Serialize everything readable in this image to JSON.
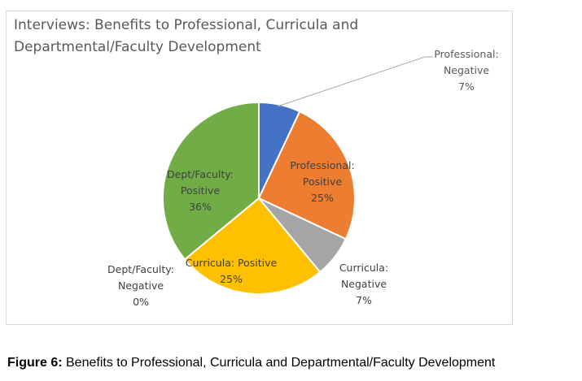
{
  "chart_data": {
    "type": "pie",
    "title": "Interviews: Benefits to Professional, Curricula and Departmental/Faculty Development",
    "slices": [
      {
        "label": "Professional: Negative",
        "value": 7,
        "display": "7%",
        "color": "#4472C4"
      },
      {
        "label": "Professional: Positive",
        "value": 25,
        "display": "25%",
        "color": "#ED7D31"
      },
      {
        "label": "Curricula: Negative",
        "value": 7,
        "display": "7%",
        "color": "#A5A5A5"
      },
      {
        "label": "Curricula: Positive",
        "value": 25,
        "display": "25%",
        "color": "#FFC000"
      },
      {
        "label": "Dept/Faculty: Negative",
        "value": 0,
        "display": "0%",
        "color": "#5B9BD5"
      },
      {
        "label": "Dept/Faculty: Positive",
        "value": 36,
        "display": "36%",
        "color": "#70AD47"
      }
    ]
  },
  "caption": {
    "prefix": "Figure 6:",
    "text": " Benefits to Professional, Curricula and Departmental/Faculty Development"
  }
}
